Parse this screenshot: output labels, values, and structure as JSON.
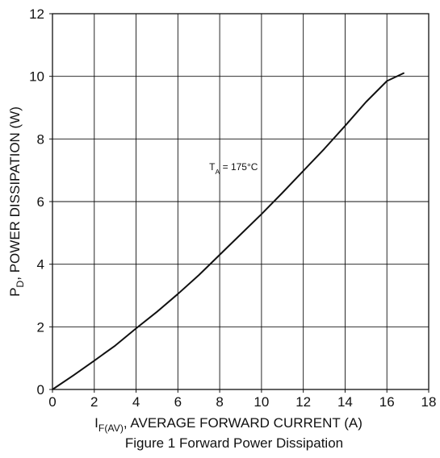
{
  "chart_data": {
    "type": "line",
    "title": "Figure 1 Forward Power Dissipation",
    "xlabel": {
      "main": "I",
      "sub": "F(AV)",
      "rest": ", AVERAGE FORWARD CURRENT (A)"
    },
    "ylabel": {
      "main": "P",
      "sub": "D",
      "rest": ", POWER DISSIPATION (W)"
    },
    "xlim": [
      0,
      18
    ],
    "ylim": [
      0,
      12
    ],
    "x_ticks": [
      0,
      2,
      4,
      6,
      8,
      10,
      12,
      14,
      16,
      18
    ],
    "y_ticks": [
      0,
      2,
      4,
      6,
      8,
      10,
      12
    ],
    "x_tick_labels": [
      "0",
      "2",
      "4",
      "6",
      "8",
      "10",
      "12",
      "14",
      "16",
      "18"
    ],
    "y_tick_labels": [
      "0",
      "2",
      "4",
      "6",
      "8",
      "10",
      "12"
    ],
    "grid": true,
    "annotation": {
      "main": "T",
      "sub": "A",
      "rest": " = 175°C",
      "x": 7.5,
      "y": 7.0
    },
    "series": [
      {
        "x": [
          0,
          1,
          2,
          3,
          4,
          5,
          6,
          7,
          8,
          9,
          10,
          11,
          12,
          13,
          14,
          15,
          16,
          16.8
        ],
        "y": [
          0,
          0.45,
          0.92,
          1.4,
          1.95,
          2.48,
          3.05,
          3.65,
          4.3,
          4.95,
          5.6,
          6.28,
          6.98,
          7.68,
          8.42,
          9.18,
          9.85,
          10.1
        ]
      }
    ],
    "colors": {
      "line": "#111111",
      "grid": "#111111",
      "background": "#ffffff"
    }
  }
}
